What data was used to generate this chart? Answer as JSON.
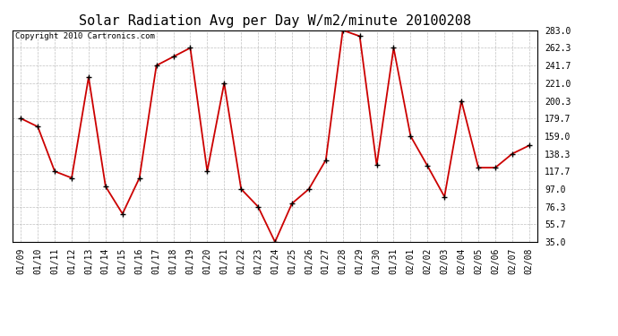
{
  "title": "Solar Radiation Avg per Day W/m2/minute 20100208",
  "copyright": "Copyright 2010 Cartronics.com",
  "x_labels": [
    "01/09",
    "01/10",
    "01/11",
    "01/12",
    "01/13",
    "01/14",
    "01/15",
    "01/16",
    "01/17",
    "01/18",
    "01/19",
    "01/20",
    "01/21",
    "01/22",
    "01/23",
    "01/24",
    "01/25",
    "01/26",
    "01/27",
    "01/28",
    "01/29",
    "01/30",
    "01/31",
    "02/01",
    "02/02",
    "02/03",
    "02/04",
    "02/05",
    "02/06",
    "02/07",
    "02/08"
  ],
  "y_values": [
    179.7,
    170.0,
    117.7,
    110.0,
    228.0,
    100.0,
    68.0,
    110.0,
    241.7,
    252.0,
    262.3,
    117.7,
    221.0,
    97.0,
    76.3,
    35.0,
    80.0,
    97.0,
    131.0,
    283.0,
    276.0,
    125.0,
    262.3,
    159.0,
    124.0,
    88.0,
    200.3,
    122.0,
    122.0,
    138.3,
    148.0
  ],
  "y_ticks": [
    35.0,
    55.7,
    76.3,
    97.0,
    117.7,
    138.3,
    159.0,
    179.7,
    200.3,
    221.0,
    241.7,
    262.3,
    283.0
  ],
  "ylim": [
    35.0,
    283.0
  ],
  "line_color": "#cc0000",
  "marker_color": "#000000",
  "bg_color": "#ffffff",
  "plot_bg_color": "#ffffff",
  "grid_color": "#b0b0b0",
  "title_fontsize": 11,
  "tick_fontsize": 7,
  "copyright_fontsize": 6.5
}
